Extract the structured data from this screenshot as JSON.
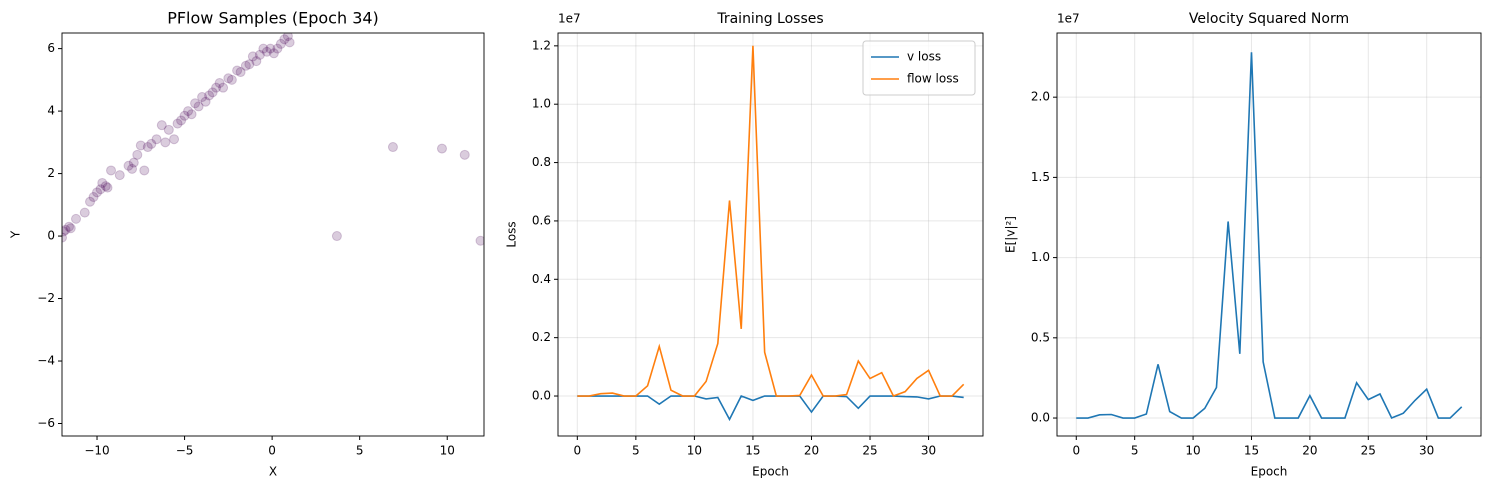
{
  "chart_data": [
    {
      "type": "scatter",
      "title": "PFlow Samples (Epoch 34)",
      "x_label": "X",
      "y_label": "Y",
      "color": "#440154",
      "opacity": 0.2,
      "grid": false,
      "x": [
        -12,
        -11.9,
        -11.8,
        -11.6,
        -11.5,
        -11.2,
        -10.7,
        -10.4,
        -10.2,
        -10.0,
        -9.8,
        -9.7,
        -9.5,
        -9.4,
        -9.2,
        -8.7,
        -8.2,
        -8.0,
        -7.9,
        -7.7,
        -7.5,
        -7.3,
        -7.1,
        -6.9,
        -6.6,
        -6.3,
        -6.1,
        -5.9,
        -5.6,
        -5.4,
        -5.2,
        -5.0,
        -4.8,
        -4.6,
        -4.4,
        -4.2,
        -4.0,
        -3.8,
        -3.6,
        -3.4,
        -3.2,
        -3.0,
        -2.8,
        -2.5,
        -2.3,
        -2.0,
        -1.8,
        -1.5,
        -1.3,
        -1.1,
        -0.9,
        -0.7,
        -0.5,
        -0.3,
        -0.1,
        0.1,
        0.3,
        0.5,
        0.7,
        0.9,
        1.0,
        3.7,
        6.9,
        9.7,
        11.0,
        11.9
      ],
      "values": [
        -0.05,
        0.15,
        0.2,
        0.3,
        0.25,
        0.55,
        0.75,
        1.1,
        1.25,
        1.4,
        1.5,
        1.7,
        1.6,
        1.55,
        2.1,
        1.95,
        2.25,
        2.15,
        2.35,
        2.6,
        2.9,
        2.1,
        2.85,
        2.95,
        3.1,
        3.55,
        3.0,
        3.4,
        3.1,
        3.6,
        3.7,
        3.85,
        4.0,
        3.9,
        4.25,
        4.15,
        4.45,
        4.3,
        4.5,
        4.6,
        4.75,
        4.9,
        4.75,
        5.05,
        5.0,
        5.3,
        5.25,
        5.45,
        5.5,
        5.75,
        5.6,
        5.8,
        6.0,
        5.9,
        6.0,
        5.85,
        6.0,
        6.15,
        6.3,
        6.4,
        6.2,
        0,
        2.85,
        2.8,
        2.6,
        -0.15
      ],
      "xlim": [
        -12,
        12.1
      ],
      "ylim": [
        -6.4,
        6.5
      ],
      "xticks": [
        {
          "value": -10,
          "label": "−10"
        },
        {
          "value": -5,
          "label": "−5"
        },
        0,
        5,
        10
      ],
      "yticks": [
        {
          "value": -6,
          "label": "−6"
        },
        {
          "value": -4,
          "label": "−4"
        },
        {
          "value": -2,
          "label": "−2"
        },
        0,
        2,
        4,
        6
      ]
    },
    {
      "type": "line",
      "title": "Training Losses",
      "x_label": "Epoch",
      "y_label": "Loss",
      "y_offset_label": "1e7",
      "grid": true,
      "legend": "upper right",
      "x": [
        0,
        1,
        2,
        3,
        4,
        5,
        6,
        7,
        8,
        9,
        10,
        11,
        12,
        13,
        14,
        15,
        16,
        17,
        18,
        19,
        20,
        21,
        22,
        23,
        24,
        25,
        26,
        27,
        28,
        29,
        30,
        31,
        32,
        33
      ],
      "series": [
        {
          "name": "v loss",
          "color": "#1f77b4",
          "values": [
            0,
            0,
            0,
            0,
            0,
            0,
            0,
            -0.028,
            0,
            0,
            0,
            -0.01,
            -0.005,
            -0.08,
            0,
            -0.015,
            0,
            0,
            0,
            0,
            -0.055,
            0,
            0,
            -0.002,
            -0.042,
            0,
            0,
            0,
            -0.002,
            -0.003,
            -0.01,
            0,
            0,
            -0.005
          ]
        },
        {
          "name": "flow loss",
          "color": "#ff7f0e",
          "values": [
            0,
            0,
            0.008,
            0.01,
            0,
            0,
            0.035,
            0.17,
            0.02,
            0,
            0,
            0.05,
            0.18,
            0.67,
            0.23,
            1.2,
            0.15,
            0,
            0,
            0.002,
            0.072,
            0,
            0,
            0.005,
            0.12,
            0.06,
            0.08,
            0,
            0.015,
            0.06,
            0.088,
            0,
            0,
            0.04
          ]
        }
      ],
      "xlim": [
        -1.65,
        34.65
      ],
      "ylim": [
        -0.137,
        1.244
      ],
      "xticks": [
        0,
        5,
        10,
        15,
        20,
        25,
        30
      ],
      "yticks": [
        {
          "value": 0,
          "label": "0.0"
        },
        0.2,
        0.4,
        0.6,
        0.8,
        {
          "value": 1,
          "label": "1.0"
        },
        1.2
      ]
    },
    {
      "type": "line",
      "title": "Velocity Squared Norm",
      "x_label": "Epoch",
      "y_label": "E[|v|²]",
      "y_offset_label": "1e7",
      "grid": true,
      "color": "#1f77b4",
      "x": [
        0,
        1,
        2,
        3,
        4,
        5,
        6,
        7,
        8,
        9,
        10,
        11,
        12,
        13,
        14,
        15,
        16,
        17,
        18,
        19,
        20,
        21,
        22,
        23,
        24,
        25,
        26,
        27,
        28,
        29,
        30,
        31,
        32,
        33
      ],
      "values": [
        0,
        0,
        0.02,
        0.022,
        0,
        0,
        0.025,
        0.335,
        0.04,
        0,
        0,
        0.06,
        0.19,
        1.225,
        0.4,
        2.28,
        0.35,
        0,
        0,
        0,
        0.14,
        0,
        0,
        0,
        0.22,
        0.115,
        0.15,
        0,
        0.03,
        0.11,
        0.18,
        0,
        0,
        0.07
      ],
      "xlim": [
        -1.65,
        34.65
      ],
      "ylim": [
        -0.112,
        2.4
      ],
      "xticks": [
        0,
        5,
        10,
        15,
        20,
        25,
        30
      ],
      "yticks": [
        {
          "value": 0,
          "label": "0.0"
        },
        0.5,
        {
          "value": 1,
          "label": "1.0"
        },
        1.5,
        {
          "value": 2,
          "label": "2.0"
        }
      ]
    }
  ]
}
